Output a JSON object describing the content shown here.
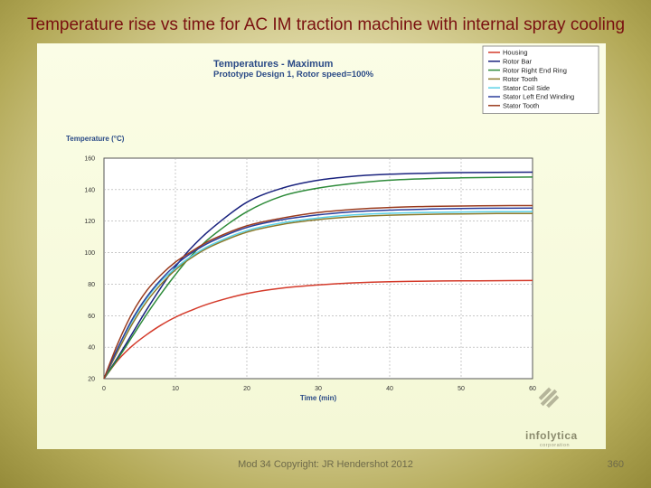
{
  "slide": {
    "title": "Temperature rise vs time for AC IM traction machine with internal spray cooling",
    "footer": "Mod 34 Copyright: JR Hendershot 2012",
    "page_number": "360"
  },
  "logo": {
    "name": "infolytica",
    "sub": "corporation",
    "icon": "infolytica-logo-icon"
  },
  "colors": {
    "axis_label": "#2a4a86",
    "grid": "#a8a8a8"
  },
  "chart_data": {
    "type": "line",
    "title": "Temperatures - Maximum",
    "subtitle": "Prototype Design 1, Rotor speed=100%",
    "xlabel": "Time (min)",
    "ylabel": "Temperature (°C)",
    "xlim": [
      0,
      60
    ],
    "ylim": [
      20,
      160
    ],
    "xticks": [
      0,
      10,
      20,
      30,
      40,
      50,
      60
    ],
    "yticks": [
      20,
      40,
      60,
      80,
      100,
      120,
      140,
      160
    ],
    "grid": true,
    "legend_position": "top-right",
    "x": [
      0,
      2,
      4,
      6,
      8,
      10,
      12,
      15,
      20,
      25,
      30,
      35,
      40,
      45,
      50,
      55,
      60
    ],
    "series": [
      {
        "name": "Housing",
        "color": "#d43a2a",
        "values": [
          20,
          32,
          41,
          48,
          54,
          59,
          63,
          68,
          74,
          77.5,
          79.5,
          80.8,
          81.5,
          81.9,
          82.1,
          82.2,
          82.3
        ]
      },
      {
        "name": "Rotor Bar",
        "color": "#1a237e",
        "values": [
          20,
          34,
          49,
          64,
          78,
          91,
          102,
          115,
          132,
          141,
          146,
          148.5,
          149.8,
          150.4,
          150.8,
          151,
          151.1
        ]
      },
      {
        "name": "Rotor Right End Ring",
        "color": "#2e8b3a",
        "values": [
          20,
          33,
          47,
          61,
          74,
          86,
          97,
          110,
          126,
          136,
          141,
          144,
          146,
          147,
          147.5,
          147.8,
          148
        ]
      },
      {
        "name": "Rotor Tooth",
        "color": "#8b7a2a",
        "values": [
          20,
          38,
          55,
          69,
          80,
          89,
          96,
          104,
          113,
          118,
          121,
          122.8,
          123.8,
          124.3,
          124.6,
          124.8,
          124.9
        ]
      },
      {
        "name": "Stator Coil Side",
        "color": "#5ad0e6",
        "values": [
          20,
          40,
          57,
          71,
          82,
          90,
          97,
          105,
          114,
          119,
          122,
          124,
          125,
          125.5,
          125.8,
          126,
          126.1
        ]
      },
      {
        "name": "Stator Left End Winding",
        "color": "#2a3d9a",
        "values": [
          20,
          40,
          58,
          72,
          83,
          92,
          99,
          107,
          116,
          121,
          124,
          126,
          127,
          127.6,
          128,
          128.2,
          128.3
        ]
      },
      {
        "name": "Stator Tooth",
        "color": "#9a3b1e",
        "values": [
          20,
          43,
          62,
          76,
          86,
          94,
          100,
          108,
          117,
          122,
          125.5,
          127.5,
          128.7,
          129.3,
          129.6,
          129.8,
          129.9
        ]
      }
    ]
  }
}
